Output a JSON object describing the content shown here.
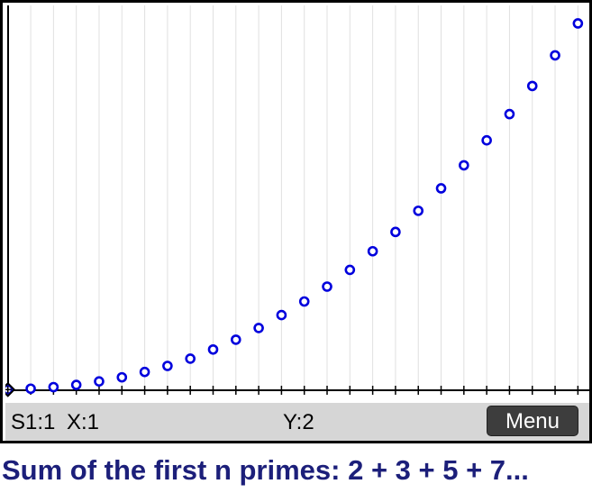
{
  "screen": {
    "status": {
      "point_label": "S1:1",
      "x_readout": "X:1",
      "y_readout": "Y:2",
      "menu_label": "Menu"
    }
  },
  "caption": "Sum of the first n primes:  2 + 3 + 5 + 7...",
  "colors": {
    "point": "#0000dd",
    "grid": "#e0e0e0",
    "axis": "#000000",
    "cursor": "#000000",
    "caption": "#1c1f7a",
    "status_bar": "#d6d6d6"
  },
  "chart_data": {
    "type": "scatter",
    "x": [
      1,
      2,
      3,
      4,
      5,
      6,
      7,
      8,
      9,
      10,
      11,
      12,
      13,
      14,
      15,
      16,
      17,
      18,
      19,
      20,
      21,
      22,
      23,
      24,
      25,
      26
    ],
    "y": [
      2,
      5,
      10,
      17,
      28,
      41,
      58,
      77,
      100,
      129,
      160,
      197,
      238,
      281,
      328,
      381,
      440,
      501,
      568,
      639,
      712,
      791,
      874,
      963,
      1060,
      1161
    ],
    "xlim": [
      0.97,
      26.5
    ],
    "ylim": [
      0,
      1218
    ],
    "x_tick_step": 1,
    "vertical_grid": true,
    "cursor_index": 0
  }
}
